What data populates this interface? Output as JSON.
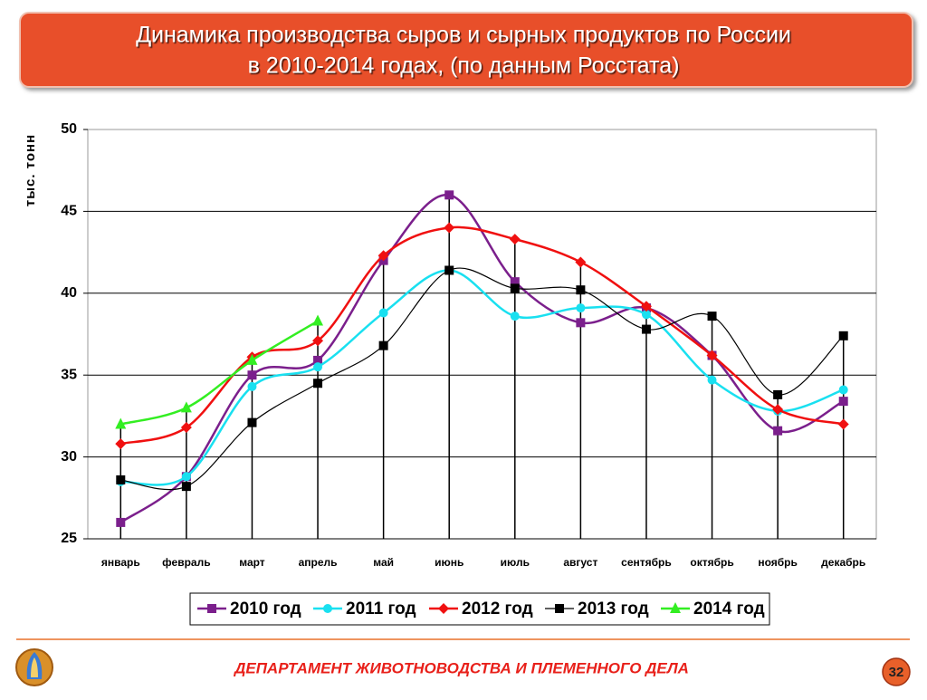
{
  "chart_data": {
    "type": "line",
    "title": "Динамика производства сыров и сырных продуктов по России",
    "subtitle": "в 2010-2014 годах, (по данным Росстата)",
    "y_label": "тыс. тонн",
    "categories": [
      "январь",
      "февраль",
      "март",
      "апрель",
      "май",
      "июнь",
      "июль",
      "август",
      "сентябрь",
      "октябрь",
      "ноябрь",
      "декабрь"
    ],
    "series": [
      {
        "name": "2010 год",
        "color": "#7b1f8c",
        "marker": "square",
        "values": [
          26.0,
          28.8,
          35.0,
          35.9,
          42.0,
          46.0,
          40.7,
          38.2,
          39.1,
          36.2,
          31.6,
          33.4
        ]
      },
      {
        "name": "2011 год",
        "color": "#19e0f0",
        "marker": "circle",
        "values": [
          28.5,
          28.8,
          34.3,
          35.5,
          38.8,
          41.4,
          38.6,
          39.1,
          38.7,
          34.7,
          32.8,
          34.1
        ]
      },
      {
        "name": "2012 год",
        "color": "#f01010",
        "marker": "diamond",
        "values": [
          30.8,
          31.8,
          36.1,
          37.1,
          42.3,
          44.0,
          43.3,
          41.9,
          39.2,
          36.2,
          32.9,
          32.0
        ]
      },
      {
        "name": "2013 год",
        "color": "#000000",
        "marker": "square",
        "values": [
          28.6,
          28.2,
          32.1,
          34.5,
          36.8,
          41.4,
          40.3,
          40.2,
          37.8,
          38.6,
          33.8,
          37.4
        ]
      },
      {
        "name": "2014 год",
        "color": "#33ee22",
        "marker": "triangle",
        "values": [
          32.0,
          33.0,
          35.9,
          38.3,
          null,
          null,
          null,
          null,
          null,
          null,
          null,
          null
        ]
      }
    ],
    "ylim": [
      25,
      50
    ],
    "yticks": [
      25,
      30,
      35,
      40,
      45,
      50
    ],
    "grid": true,
    "legend": "bottom"
  },
  "footer": {
    "department": "ДЕПАРТАМЕНТ ЖИВОТНОВОДСТВА И ПЛЕМЕННОГО ДЕЛА",
    "page": "32"
  }
}
